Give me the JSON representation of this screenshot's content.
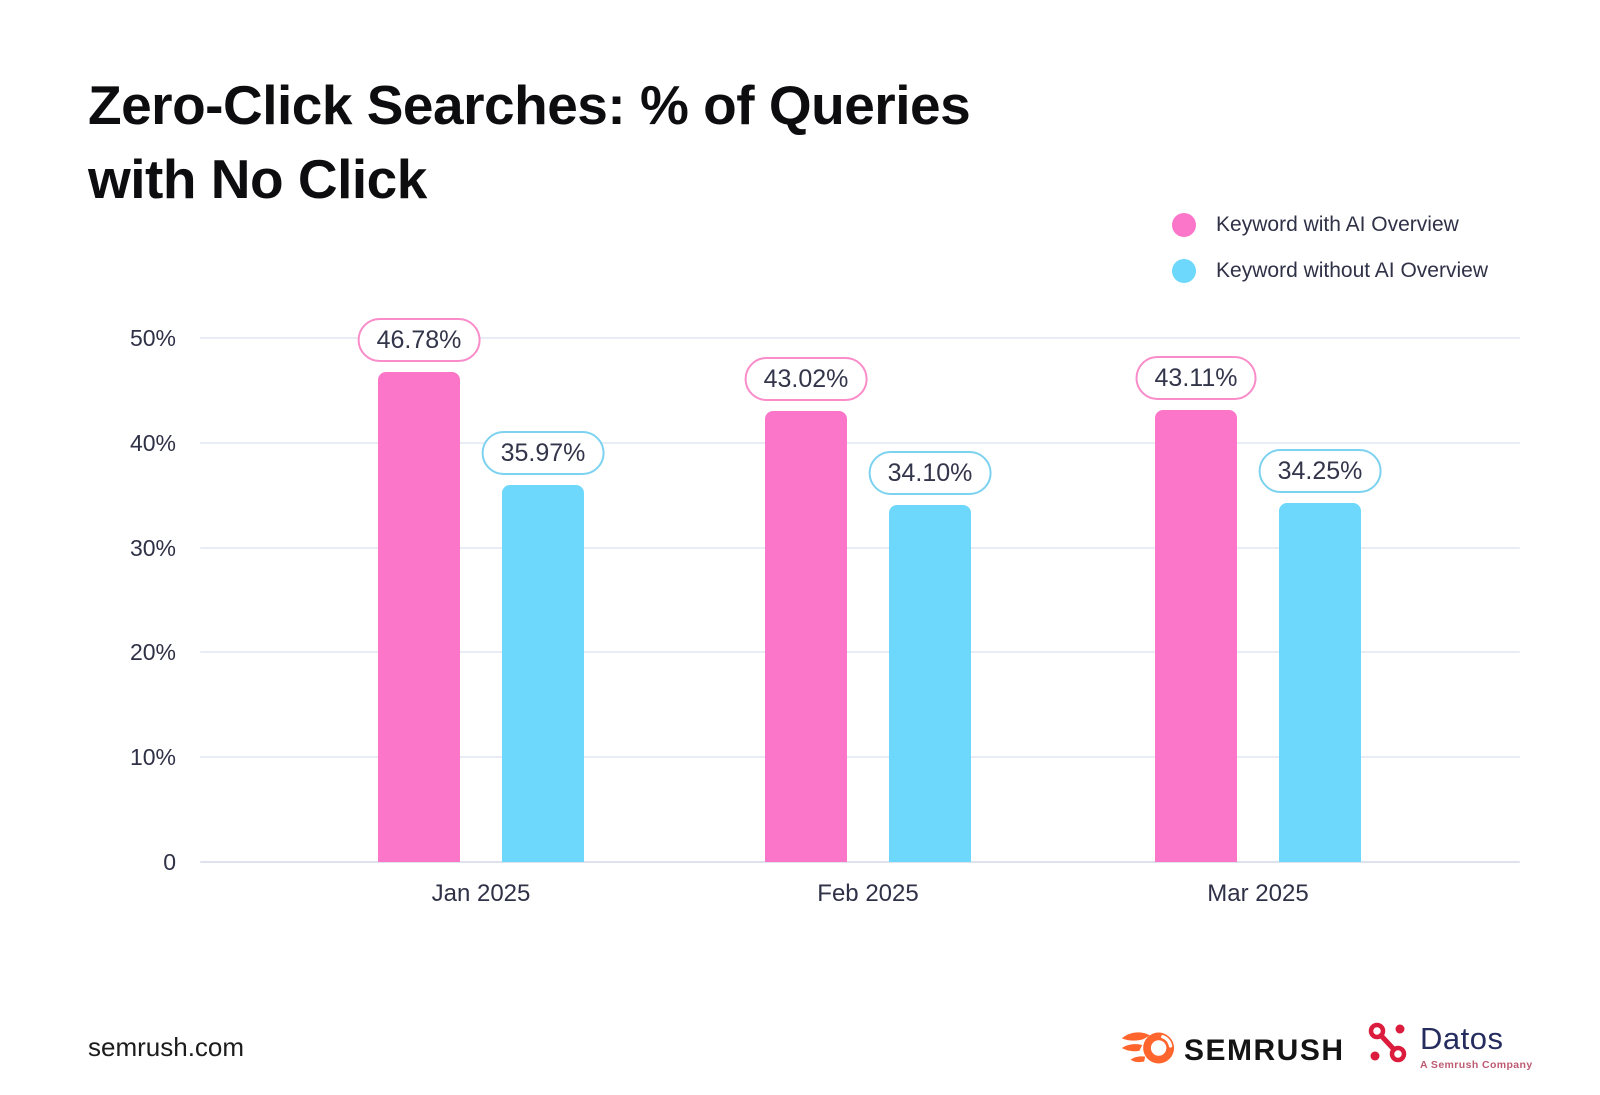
{
  "title": {
    "line1": "Zero-Click Searches: % of Queries",
    "line2": "with No Click"
  },
  "legend": [
    {
      "label": "Keyword with AI Overview",
      "color": "#fb76c8"
    },
    {
      "label": "Keyword without AI Overview",
      "color": "#6dd8fb"
    }
  ],
  "chart_data": {
    "type": "bar",
    "categories": [
      "Jan 2025",
      "Feb 2025",
      "Mar 2025"
    ],
    "series": [
      {
        "name": "Keyword with AI Overview",
        "color": "#fb76c8",
        "pill_border": "#f98cc9",
        "values": [
          46.78,
          43.02,
          43.11
        ],
        "value_labels": [
          "46.78%",
          "43.02%",
          "43.11%"
        ]
      },
      {
        "name": "Keyword without AI Overview",
        "color": "#6dd8fb",
        "pill_border": "#7dd2f0",
        "values": [
          35.97,
          34.1,
          34.25
        ],
        "value_labels": [
          "35.97%",
          "34.10%",
          "34.25%"
        ]
      }
    ],
    "title": "Zero-Click Searches: % of Queries with No Click",
    "xlabel": "",
    "ylabel": "",
    "ylim": [
      0,
      50
    ],
    "yticks": [
      {
        "value": 50,
        "label": "50%"
      },
      {
        "value": 40,
        "label": "40%"
      },
      {
        "value": 30,
        "label": "30%"
      },
      {
        "value": 20,
        "label": "20%"
      },
      {
        "value": 10,
        "label": "10%"
      },
      {
        "value": 0,
        "label": "0"
      }
    ],
    "grid": true,
    "legend_position": "top-right"
  },
  "footer": {
    "site": "semrush.com",
    "semrush_logo_text": "SEMRUSH",
    "datos_logo_text": "Datos",
    "datos_tagline": "A Semrush Company"
  },
  "colors": {
    "pink": "#fb76c8",
    "blue": "#6dd8fb",
    "gridline": "#e8ecf5",
    "axis_text": "#2f3147",
    "title_text": "#0d0d10",
    "semrush_orange": "#ff652c",
    "datos_crimson": "#dc1c3c",
    "datos_navy": "#252c5e"
  }
}
